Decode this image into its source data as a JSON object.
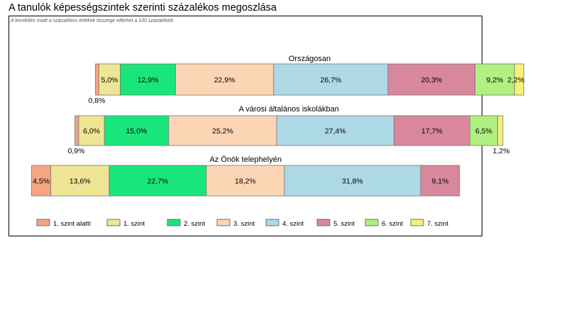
{
  "page": {
    "title": "A tanulók képességszintek szerinti százalékos megoszlása",
    "note": "A kerekítés miatt a százalékos értékek összege eltérhet a 100 százaléktól."
  },
  "chart_data": {
    "type": "bar",
    "orientation": "horizontal",
    "stacked": true,
    "unit": "%",
    "groups": [
      {
        "title": "Országosan",
        "values": [
          0.8,
          5.0,
          12.9,
          22.9,
          26.7,
          20.3,
          9.2,
          2.2
        ],
        "labels": [
          "0,8%",
          "5,0%",
          "12,9%",
          "22,9%",
          "26,7%",
          "20,3%",
          "9,2%",
          "2,2%"
        ]
      },
      {
        "title": "A városi általános iskolákban",
        "values": [
          0.9,
          6.0,
          15.0,
          25.2,
          27.4,
          17.7,
          6.5,
          1.2
        ],
        "labels": [
          "0,9%",
          "6,0%",
          "15,0%",
          "25,2%",
          "27,4%",
          "17,7%",
          "6,5%",
          "1,2%"
        ]
      },
      {
        "title": "Az Önök telephelyén",
        "values": [
          4.5,
          13.6,
          22.7,
          18.2,
          31.8,
          9.1,
          0,
          0
        ],
        "labels": [
          "4,5%",
          "13,6%",
          "22,7%",
          "18,2%",
          "31,8%",
          "9,1%",
          "",
          ""
        ]
      }
    ],
    "series": [
      {
        "name": "1. szint alatti",
        "color": "#f4a582"
      },
      {
        "name": "1. szint",
        "color": "#eee695"
      },
      {
        "name": "2. szint",
        "color": "#19e67a"
      },
      {
        "name": "3. szint",
        "color": "#fcd5b5"
      },
      {
        "name": "4. szint",
        "color": "#add8e6"
      },
      {
        "name": "5. szint",
        "color": "#d9879c"
      },
      {
        "name": "6. szint",
        "color": "#aff081"
      },
      {
        "name": "7. szint",
        "color": "#f7f07a"
      }
    ],
    "legend_position": "bottom",
    "grid": false
  }
}
